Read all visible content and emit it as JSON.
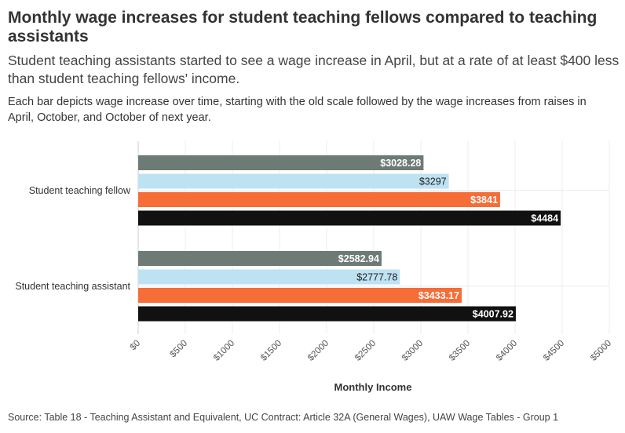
{
  "title": "Monthly wage increases for student teaching fellows compared to teaching assistants",
  "subtitle": "Student teaching assistants started to see a wage increase in April, but at a rate of at least $400 less than student teaching fellows' income.",
  "description": "Each bar depicts wage increase over time, starting with the old scale followed by the wage increases from raises in April, October, and October of next year.",
  "source": "Source: Table 18 - Teaching Assistant and Equivalent, UC Contract: Article 32A (General Wages), UAW Wage Tables - Group 1",
  "chart_data": {
    "type": "bar",
    "orientation": "horizontal",
    "categories": [
      "Student teaching fellow",
      "Student teaching assistant"
    ],
    "series": [
      {
        "values": [
          3028.28,
          2582.94
        ],
        "labels": [
          "$3028.28",
          "$2582.94"
        ],
        "color": "#6e7b74"
      },
      {
        "values": [
          3297,
          2777.78
        ],
        "labels": [
          "$3297",
          "$2777.78"
        ],
        "color": "#bde3f3"
      },
      {
        "values": [
          3841,
          3433.17
        ],
        "labels": [
          "$3841",
          "$3433.17"
        ],
        "color": "#f66d38"
      },
      {
        "values": [
          4484,
          4007.92
        ],
        "labels": [
          "$4484",
          "$4007.92"
        ],
        "color": "#111111"
      }
    ],
    "xlabel": "Monthly Income",
    "xlim": [
      0,
      5000
    ],
    "xticks": [
      0,
      500,
      1000,
      1500,
      2000,
      2500,
      3000,
      3500,
      4000,
      4500,
      5000
    ],
    "xtick_labels": [
      "$0",
      "$500",
      "$1000",
      "$1500",
      "$2000",
      "$2500",
      "$3000",
      "$3500",
      "$4000",
      "$4500",
      "$5000"
    ],
    "grid": true,
    "legend": "none"
  }
}
